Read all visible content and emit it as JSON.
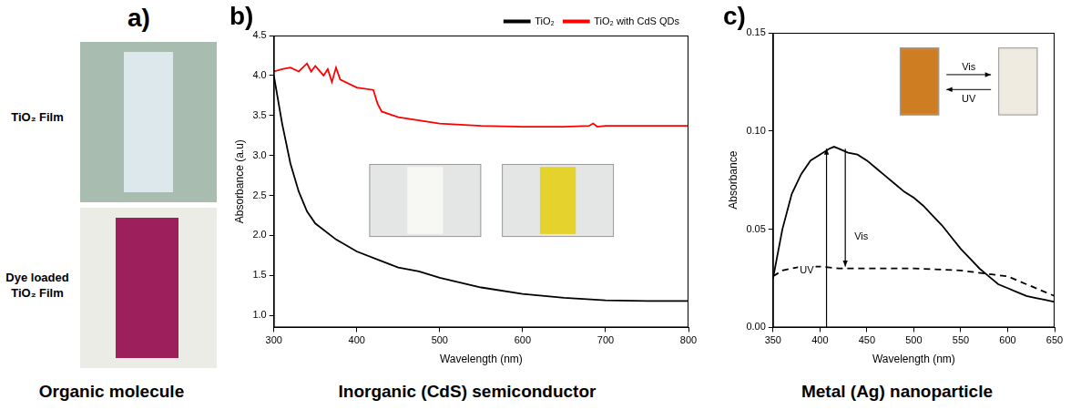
{
  "panels": [
    {
      "letter": "a)",
      "photo_labels": [
        "TiO₂ Film",
        "Dye loaded TiO₂ Film"
      ],
      "caption": "Organic molecule"
    },
    {
      "letter": "b)",
      "caption": "Inorganic (CdS) semiconductor"
    },
    {
      "letter": "c)",
      "caption": "Metal (Ag) nanoparticle",
      "inset_labels": [
        "Vis",
        "UV"
      ]
    }
  ],
  "chart_data": [
    {
      "type": "line",
      "x_label": "Wavelength (nm)",
      "y_label": "Absorbance (a.u)",
      "xlim": [
        300,
        800
      ],
      "xticks": [
        300,
        400,
        500,
        600,
        700,
        800
      ],
      "ylim": [
        0.85,
        4.5
      ],
      "yticks": [
        {
          "value": 1,
          "label": "1.0"
        },
        1.5,
        {
          "value": 2,
          "label": "2.0"
        },
        2.5,
        {
          "value": 3,
          "label": "3.0"
        },
        3.5,
        {
          "value": 4,
          "label": "4.0"
        },
        4.5
      ],
      "grid": false,
      "legend": "upper right",
      "series": [
        {
          "name": "TiO₂",
          "color": "#000000",
          "line_style": "solid",
          "x": [
            300,
            310,
            320,
            330,
            340,
            350,
            375,
            400,
            425,
            450,
            475,
            500,
            550,
            600,
            650,
            700,
            750,
            800
          ],
          "values": [
            4.0,
            3.4,
            2.9,
            2.55,
            2.3,
            2.15,
            1.95,
            1.8,
            1.7,
            1.6,
            1.55,
            1.47,
            1.35,
            1.27,
            1.22,
            1.19,
            1.18,
            1.18
          ]
        },
        {
          "name": "TiO₂ with CdS QDs",
          "color": "#ff0000",
          "line_style": "solid",
          "x": [
            300,
            310,
            320,
            330,
            340,
            345,
            350,
            360,
            365,
            370,
            375,
            380,
            400,
            420,
            425,
            430,
            450,
            500,
            550,
            600,
            650,
            680,
            685,
            690,
            700,
            750,
            800
          ],
          "values": [
            4.05,
            4.08,
            4.1,
            4.05,
            4.15,
            4.05,
            4.12,
            4.0,
            4.08,
            3.92,
            4.1,
            3.95,
            3.85,
            3.82,
            3.65,
            3.55,
            3.48,
            3.4,
            3.37,
            3.36,
            3.36,
            3.37,
            3.4,
            3.36,
            3.37,
            3.37,
            3.37
          ]
        }
      ]
    },
    {
      "type": "line",
      "x_label": "Wavelength (nm)",
      "y_label": "Absorbance",
      "xlim": [
        350,
        650
      ],
      "xticks": [
        350,
        400,
        450,
        500,
        550,
        600,
        650
      ],
      "ylim": [
        0,
        0.15
      ],
      "yticks": [
        {
          "value": 0,
          "label": "0.00"
        },
        0.05,
        {
          "value": 0.1,
          "label": "0.10"
        },
        0.15
      ],
      "grid": false,
      "series": [
        {
          "color": "#000000",
          "line_style": "solid",
          "x": [
            350,
            360,
            370,
            380,
            390,
            400,
            410,
            415,
            420,
            430,
            440,
            450,
            460,
            470,
            480,
            490,
            500,
            510,
            520,
            530,
            540,
            550,
            560,
            570,
            580,
            590,
            600,
            610,
            620,
            630,
            640,
            650
          ],
          "values": [
            0.025,
            0.05,
            0.068,
            0.078,
            0.085,
            0.088,
            0.091,
            0.092,
            0.091,
            0.089,
            0.088,
            0.085,
            0.081,
            0.077,
            0.073,
            0.069,
            0.066,
            0.062,
            0.057,
            0.052,
            0.046,
            0.04,
            0.035,
            0.03,
            0.026,
            0.022,
            0.02,
            0.018,
            0.016,
            0.015,
            0.014,
            0.013
          ]
        },
        {
          "color": "#000000",
          "line_style": "dashed",
          "x": [
            350,
            360,
            380,
            400,
            420,
            450,
            500,
            550,
            600,
            620,
            640,
            650
          ],
          "values": [
            0.026,
            0.029,
            0.031,
            0.031,
            0.03,
            0.03,
            0.03,
            0.029,
            0.026,
            0.022,
            0.018,
            0.016
          ]
        }
      ],
      "annotations": [
        {
          "text": "UV",
          "x": 407,
          "from": 0,
          "to": 0.091
        },
        {
          "text": "Vis",
          "x": 427,
          "from": 0.091,
          "to": 0.031
        }
      ]
    }
  ]
}
